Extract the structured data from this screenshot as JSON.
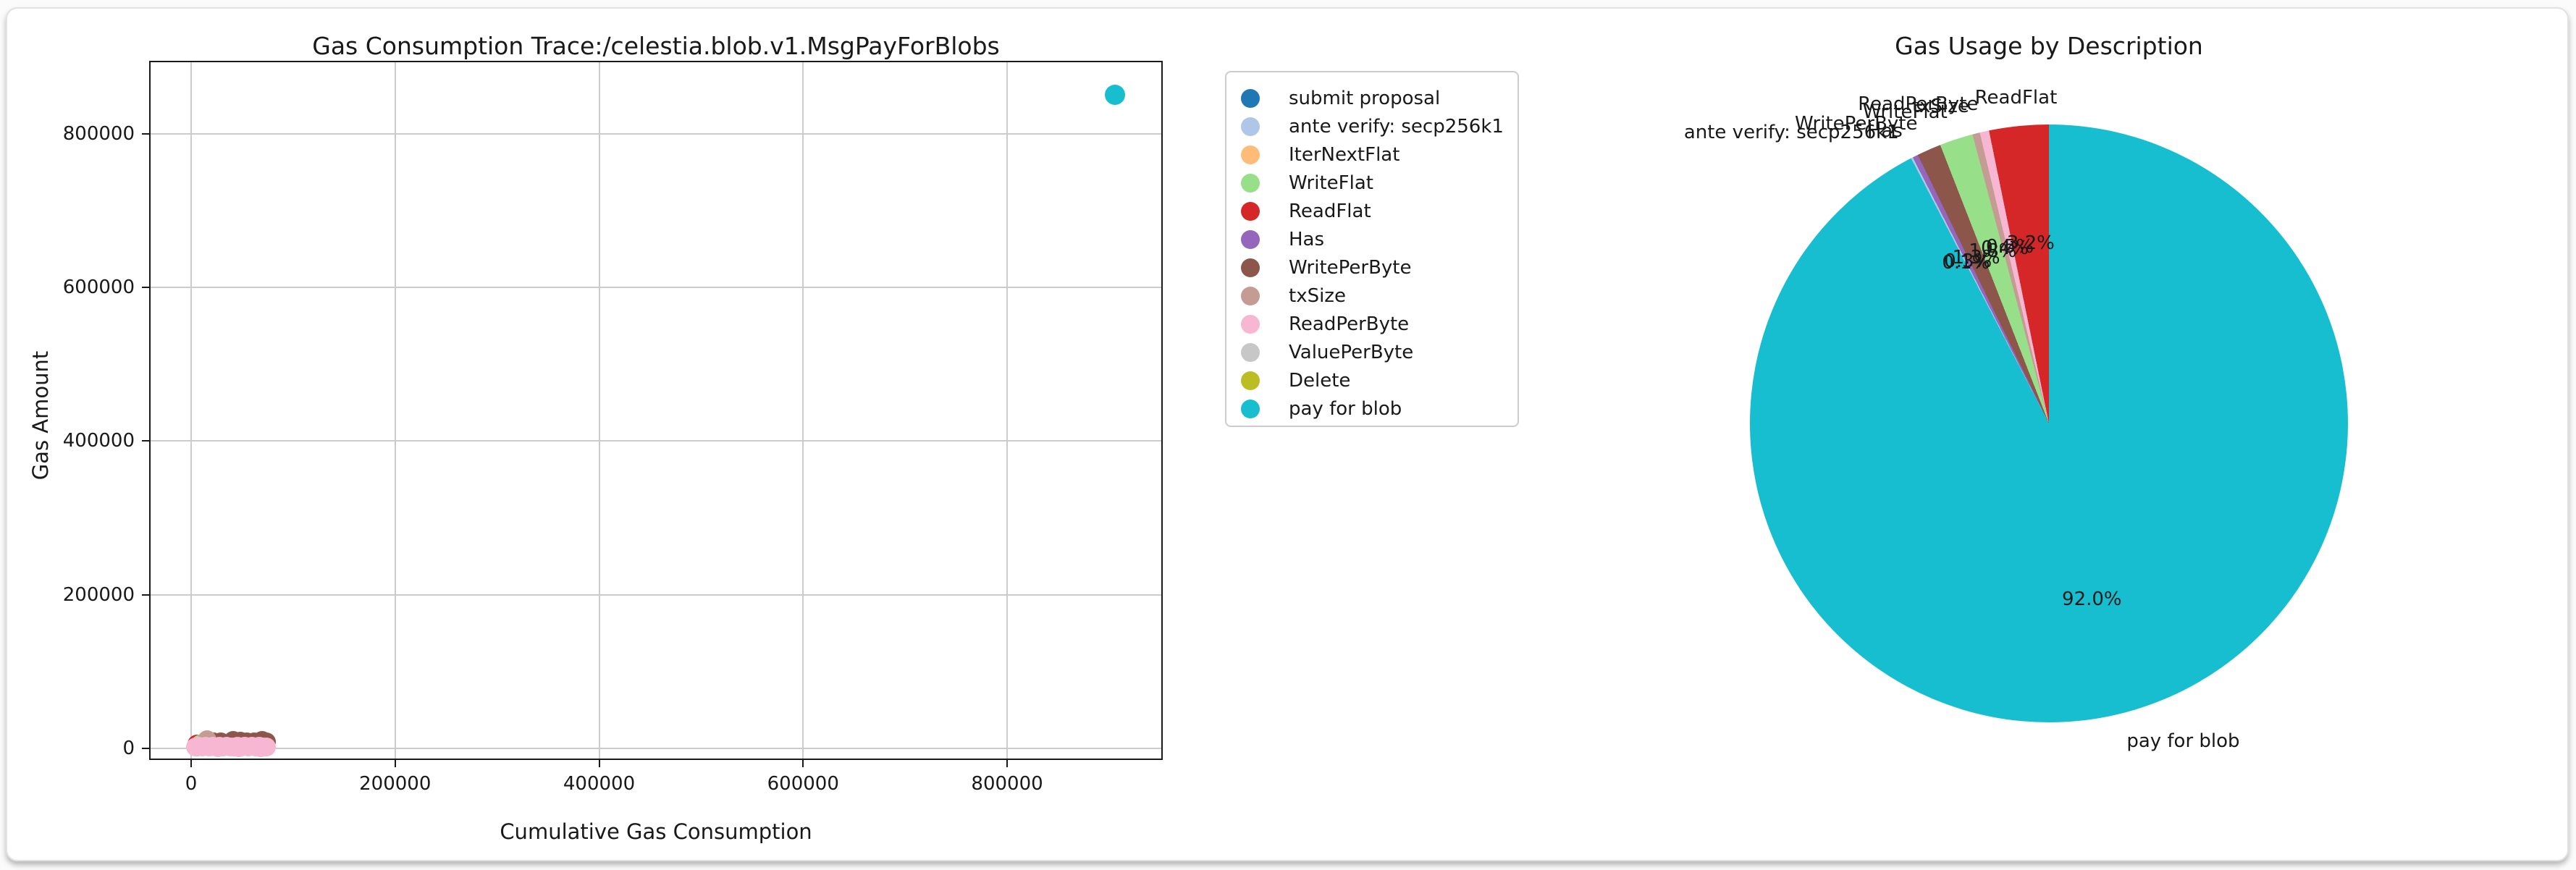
{
  "figure": {
    "background": "#ffffff",
    "card_border_color": "#e2e2e2"
  },
  "legend": {
    "items": [
      {
        "label": "submit proposal",
        "color": "#1f77b4"
      },
      {
        "label": "ante verify: secp256k1",
        "color": "#aec7e8"
      },
      {
        "label": "IterNextFlat",
        "color": "#ffbb78"
      },
      {
        "label": "WriteFlat",
        "color": "#98df8a"
      },
      {
        "label": "ReadFlat",
        "color": "#d62728"
      },
      {
        "label": "Has",
        "color": "#9467bd"
      },
      {
        "label": "WritePerByte",
        "color": "#8c564b"
      },
      {
        "label": "txSize",
        "color": "#c49c94"
      },
      {
        "label": "ReadPerByte",
        "color": "#f7b6d2"
      },
      {
        "label": "ValuePerByte",
        "color": "#c7c7c7"
      },
      {
        "label": "Delete",
        "color": "#bcbd22"
      },
      {
        "label": "pay for blob",
        "color": "#17becf"
      }
    ]
  },
  "chart_data": [
    {
      "type": "scatter",
      "title": "Gas Consumption Trace:/celestia.blob.v1.MsgPayForBlobs",
      "xlabel": "Cumulative Gas Consumption",
      "ylabel": "Gas Amount",
      "xlim": [
        -45000,
        955000
      ],
      "ylim": [
        -45000,
        895000
      ],
      "x_ticks": [
        0,
        200000,
        400000,
        600000,
        800000
      ],
      "y_ticks": [
        0,
        200000,
        400000,
        600000,
        800000
      ],
      "grid": true,
      "legend_position": "outside-right",
      "series": [
        {
          "name": "submit proposal",
          "color": "#1f77b4",
          "points": []
        },
        {
          "name": "ante verify: secp256k1",
          "color": "#aec7e8",
          "points": []
        },
        {
          "name": "IterNextFlat",
          "color": "#ffbb78",
          "points": []
        },
        {
          "name": "ReadFlat",
          "color": "#d62728",
          "points": [
            [
              6000,
              5200
            ],
            [
              12000,
              5300
            ],
            [
              18000,
              5100
            ],
            [
              24000,
              5400
            ],
            [
              30000,
              5200
            ],
            [
              36000,
              5300
            ],
            [
              42000,
              5100
            ],
            [
              48000,
              5300
            ],
            [
              54000,
              5200
            ],
            [
              60000,
              5400
            ],
            [
              66000,
              5200
            ],
            [
              71000,
              5300
            ]
          ]
        },
        {
          "name": "WriteFlat",
          "color": "#98df8a",
          "points": [
            [
              9000,
              5600
            ],
            [
              16000,
              5800
            ],
            [
              23000,
              5500
            ],
            [
              33000,
              5700
            ],
            [
              40000,
              5600
            ]
          ]
        },
        {
          "name": "Has",
          "color": "#9467bd",
          "points": []
        },
        {
          "name": "WritePerByte",
          "color": "#8c564b",
          "points": [
            [
              15000,
              8200
            ],
            [
              22000,
              8800
            ],
            [
              29000,
              8400
            ],
            [
              41000,
              10200
            ],
            [
              48000,
              9000
            ],
            [
              55000,
              8600
            ],
            [
              62000,
              8800
            ],
            [
              69500,
              10400
            ],
            [
              74000,
              8300
            ]
          ]
        },
        {
          "name": "txSize",
          "color": "#c49c94",
          "points": [
            [
              15500,
              11000
            ],
            [
              5500,
              2200
            ]
          ]
        },
        {
          "name": "ReadPerByte",
          "color": "#f7b6d2",
          "points": [
            [
              4000,
              1800
            ],
            [
              7000,
              2400
            ],
            [
              10500,
              1600
            ],
            [
              14000,
              2800
            ],
            [
              17500,
              2000
            ],
            [
              21000,
              3100
            ],
            [
              24500,
              1700
            ],
            [
              26000,
              900
            ],
            [
              28000,
              2500
            ],
            [
              31500,
              1900
            ],
            [
              35000,
              3000
            ],
            [
              38500,
              2200
            ],
            [
              42000,
              1600
            ],
            [
              45500,
              2700
            ],
            [
              47000,
              1100
            ],
            [
              49000,
              2000
            ],
            [
              52500,
              3200
            ],
            [
              56000,
              1800
            ],
            [
              59500,
              2600
            ],
            [
              63000,
              2100
            ],
            [
              66500,
              2900
            ],
            [
              68000,
              1000
            ],
            [
              70000,
              2300
            ],
            [
              73500,
              2000
            ]
          ]
        },
        {
          "name": "ValuePerByte",
          "color": "#c7c7c7",
          "points": []
        },
        {
          "name": "Delete",
          "color": "#bcbd22",
          "points": []
        },
        {
          "name": "pay for blob",
          "color": "#17becf",
          "points": [
            [
              906000,
              851000
            ]
          ],
          "marker_radius": 14
        }
      ]
    },
    {
      "type": "pie",
      "title": "Gas Usage by Description",
      "order": "clockwise-from-top",
      "slices": [
        {
          "label": "pay for blob",
          "value": 92.0,
          "pct": "92.0%",
          "color": "#17becf"
        },
        {
          "label": "ante verify: secp256k1",
          "value": 0.1,
          "pct": "0.1%",
          "color": "#aec7e8"
        },
        {
          "label": "Has",
          "value": 0.3,
          "pct": "0.3%",
          "color": "#9467bd"
        },
        {
          "label": "WritePerByte",
          "value": 1.3,
          "pct": "1.3%",
          "color": "#8c564b"
        },
        {
          "label": "WriteFlat",
          "value": 1.8,
          "pct": "1.8%",
          "color": "#98df8a"
        },
        {
          "label": "txSize",
          "value": 0.4,
          "pct": "0.4%",
          "color": "#c49c94"
        },
        {
          "label": "ReadPerByte",
          "value": 0.5,
          "pct": "0.5%",
          "color": "#f7b6d2"
        },
        {
          "label": "ReadFlat",
          "value": 3.2,
          "pct": "3.2%",
          "color": "#d62728"
        }
      ]
    }
  ]
}
